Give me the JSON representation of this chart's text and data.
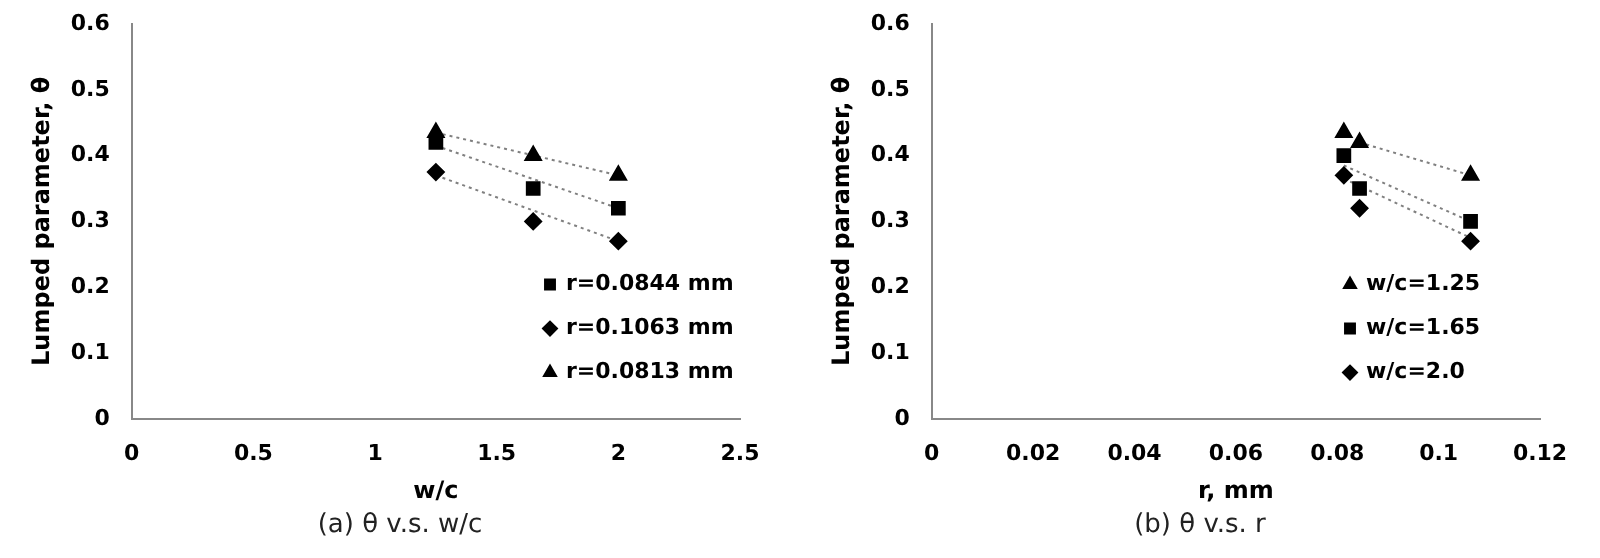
{
  "chart_data": [
    {
      "type": "scatter",
      "xlabel": "w/c",
      "ylabel": "Lumped parameter, θ",
      "annotations": [
        "(a) θ v.s. w/c"
      ],
      "xlim": [
        0,
        2.5
      ],
      "xticks": [
        0,
        0.5,
        1,
        1.5,
        2,
        2.5
      ],
      "ylim": [
        0,
        0.6
      ],
      "yticks": [
        0,
        0.1,
        0.2,
        0.3,
        0.4,
        0.5,
        0.6
      ],
      "grid": false,
      "legend": "right",
      "series": [
        {
          "name": "r=0.0844 mm",
          "color": "#000000",
          "marker": "square",
          "x": [
            1.25,
            1.65,
            2
          ],
          "values": [
            0.42,
            0.35,
            0.32
          ]
        },
        {
          "name": "r=0.1063 mm",
          "color": "#000000",
          "marker": "diamond",
          "x": [
            1.25,
            1.65,
            2
          ],
          "values": [
            0.375,
            0.3,
            0.27
          ]
        },
        {
          "name": "r=0.0813 mm",
          "color": "#000000",
          "marker": "triangle",
          "x": [
            1.25,
            1.65,
            2
          ],
          "values": [
            0.435,
            0.4,
            0.37
          ]
        },
        {
          "type": "line",
          "color": "#808080",
          "marker": "none",
          "line_style": "dotted",
          "x": [
            1.25,
            2
          ],
          "values": [
            0.415,
            0.32
          ]
        },
        {
          "type": "line",
          "color": "#808080",
          "marker": "none",
          "line_style": "dotted",
          "x": [
            1.25,
            2
          ],
          "values": [
            0.37,
            0.27
          ]
        },
        {
          "type": "line",
          "color": "#808080",
          "marker": "none",
          "line_style": "dotted",
          "x": [
            1.25,
            2
          ],
          "values": [
            0.435,
            0.37
          ]
        }
      ]
    },
    {
      "type": "scatter",
      "xlabel": "r, mm",
      "ylabel": "Lumped parameter, θ",
      "annotations": [
        "(b) θ v.s. r"
      ],
      "xlim": [
        0,
        0.12
      ],
      "xticks": [
        0,
        0.02,
        0.04,
        0.06,
        0.08,
        0.1,
        0.12
      ],
      "ylim": [
        0,
        0.6
      ],
      "yticks": [
        0,
        0.1,
        0.2,
        0.3,
        0.4,
        0.5,
        0.6
      ],
      "grid": false,
      "legend": "right",
      "series": [
        {
          "name": "w/c=1.25",
          "color": "#000000",
          "marker": "triangle",
          "x": [
            0.0813,
            0.0844,
            0.1063
          ],
          "values": [
            0.435,
            0.42,
            0.37
          ]
        },
        {
          "name": "w/c=1.65",
          "color": "#000000",
          "marker": "square",
          "x": [
            0.0813,
            0.0844,
            0.1063
          ],
          "values": [
            0.4,
            0.35,
            0.3
          ]
        },
        {
          "name": "w/c=2.0",
          "color": "#000000",
          "marker": "diamond",
          "x": [
            0.0813,
            0.0844,
            0.1063
          ],
          "values": [
            0.37,
            0.32,
            0.27
          ]
        },
        {
          "type": "line",
          "color": "#808080",
          "marker": "none",
          "line_style": "dotted",
          "x": [
            0.0844,
            0.1063
          ],
          "values": [
            0.42,
            0.37
          ]
        },
        {
          "type": "line",
          "color": "#808080",
          "marker": "none",
          "line_style": "dotted",
          "x": [
            0.0813,
            0.1063
          ],
          "values": [
            0.385,
            0.3
          ]
        },
        {
          "type": "line",
          "color": "#808080",
          "marker": "none",
          "line_style": "dotted",
          "x": [
            0.0813,
            0.1063
          ],
          "values": [
            0.365,
            0.275
          ]
        }
      ]
    }
  ]
}
